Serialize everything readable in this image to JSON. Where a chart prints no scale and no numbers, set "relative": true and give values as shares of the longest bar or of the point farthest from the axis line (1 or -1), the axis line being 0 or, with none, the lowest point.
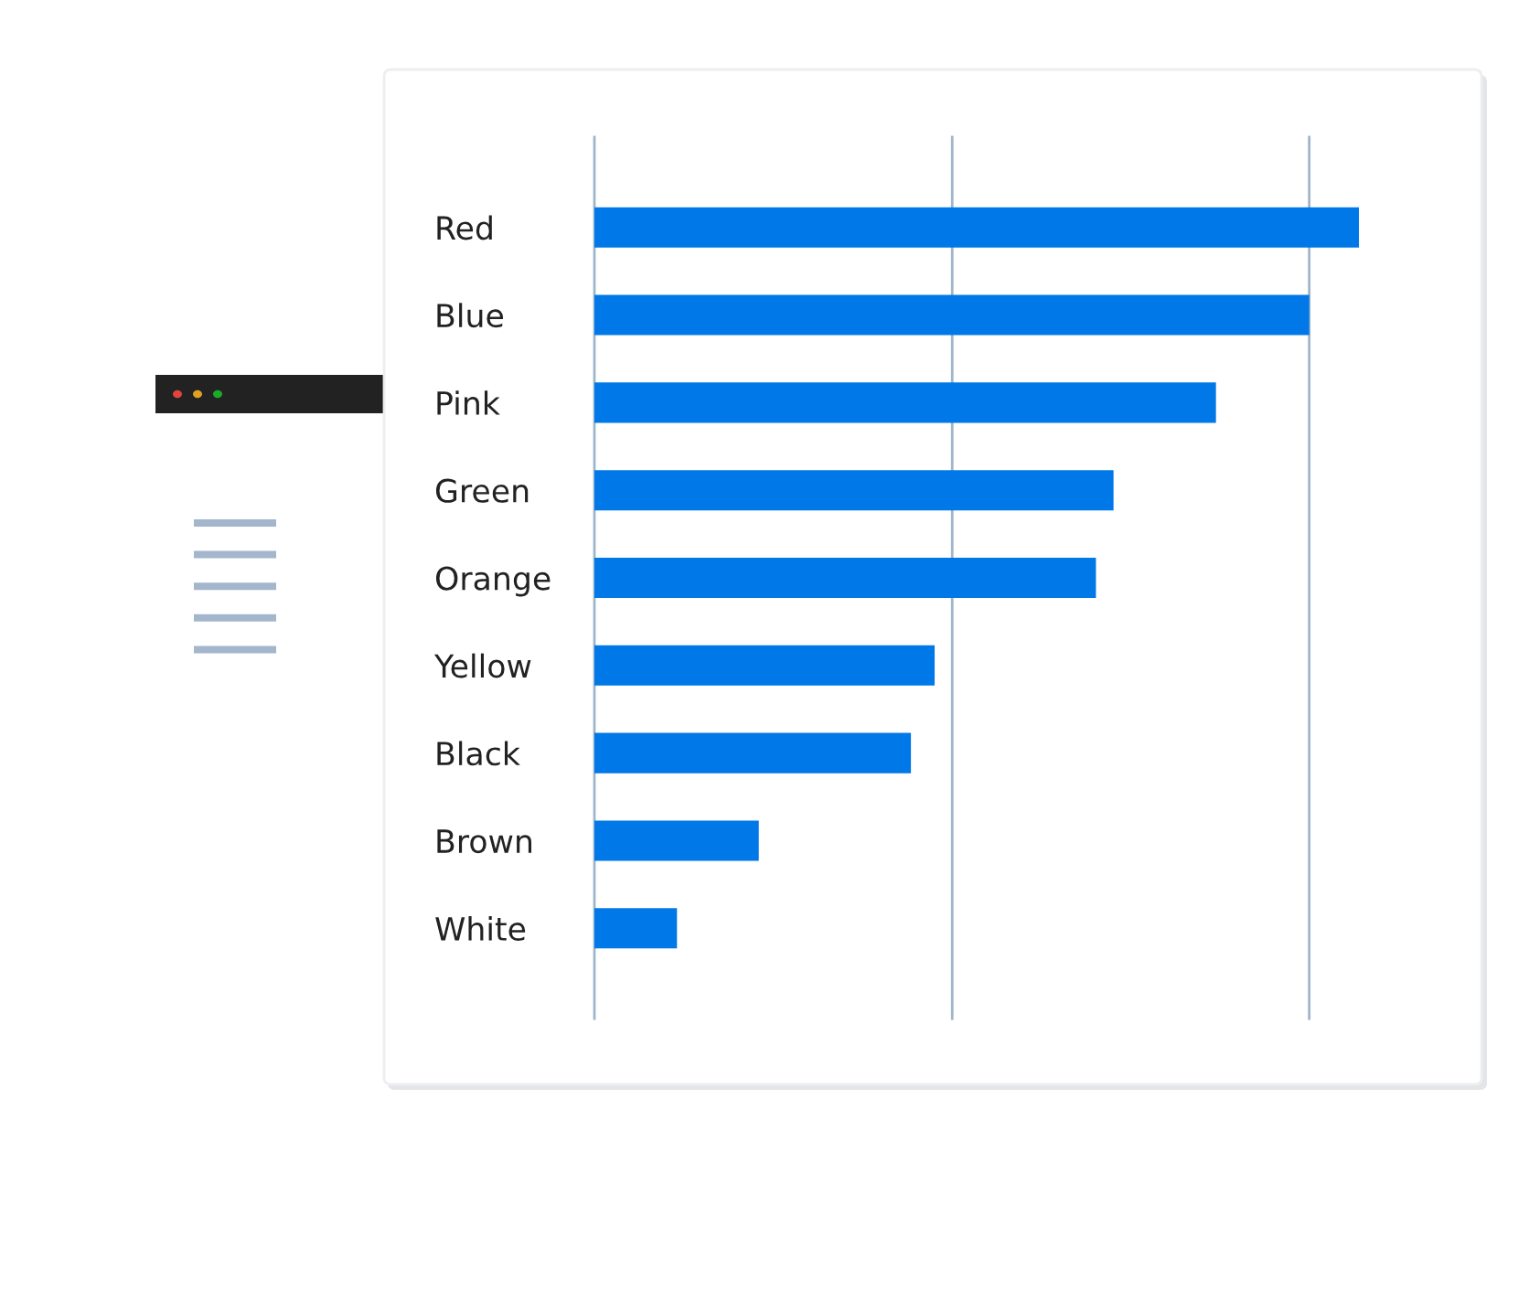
{
  "chart_data": {
    "type": "bar",
    "orientation": "horizontal",
    "relative": true,
    "categories": [
      "Red",
      "Blue",
      "Pink",
      "Green",
      "Orange",
      "Yellow",
      "Black",
      "Brown",
      "White"
    ],
    "values": [
      1,
      0.935,
      0.813,
      0.679,
      0.656,
      0.445,
      0.414,
      0.215,
      0.108
    ],
    "color": "#0078e7",
    "ref_lines": [
      {
        "axis": "x",
        "value": 0,
        "color": "#9fb5c9"
      },
      {
        "axis": "x",
        "value": 0.468,
        "color": "#9fb5c9"
      },
      {
        "axis": "x",
        "value": 0.935,
        "color": "#9fb5c9"
      }
    ]
  }
}
